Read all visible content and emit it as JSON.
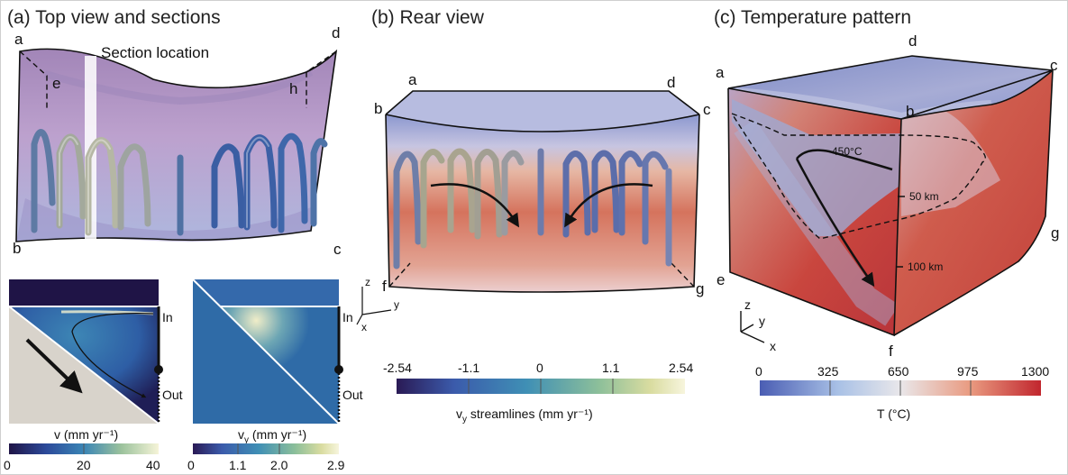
{
  "panel_a": {
    "title": "(a) Top view and sections",
    "section_label": "Section location",
    "corners": {
      "a": "a",
      "b": "b",
      "c": "c",
      "d": "d",
      "e": "e",
      "h": "h"
    },
    "in_label": "In",
    "out_label": "Out",
    "colorbar_v": {
      "label": "v (mm yr⁻¹)",
      "ticks": [
        "0",
        "20",
        "40"
      ]
    },
    "colorbar_vy": {
      "label": "v",
      "label_sub": "y",
      "label_rest": " (mm yr⁻¹)",
      "ticks": [
        "0",
        "1.1",
        "2.0",
        "2.9"
      ]
    }
  },
  "panel_b": {
    "title": "(b) Rear view",
    "corners": {
      "a": "a",
      "b": "b",
      "c": "c",
      "d": "d",
      "f": "f",
      "g": "g"
    },
    "axes": {
      "x": "x",
      "y": "y",
      "z": "z"
    },
    "colorbar": {
      "label": "v",
      "label_sub": "y",
      "label_rest": " streamlines (mm yr⁻¹)",
      "ticks": [
        "-2.54",
        "-1.1",
        "0",
        "1.1",
        "2.54"
      ],
      "colors": [
        "#2a1a55",
        "#3b5bab",
        "#3f8fb5",
        "#8cbf9a",
        "#d9dca0",
        "#f7f5dd"
      ]
    }
  },
  "panel_c": {
    "title": "(c) Temperature pattern",
    "corners": {
      "a": "a",
      "b": "b",
      "c": "c",
      "d": "d",
      "e": "e",
      "f": "f",
      "g": "g"
    },
    "axes": {
      "x": "x",
      "y": "y",
      "z": "z"
    },
    "isotherm_label": "450°C",
    "depth_labels": [
      "50 km",
      "100 km"
    ],
    "colorbar": {
      "label": "T (°C)",
      "ticks": [
        "0",
        "325",
        "650",
        "975",
        "1300"
      ],
      "colors": [
        "#4a5db3",
        "#a9c1e6",
        "#e9e7ea",
        "#e99a80",
        "#c1262e"
      ]
    }
  },
  "colors": {
    "velocity_map": [
      "#1f1446",
      "#2c4a9a",
      "#3a85b5",
      "#9bc29c",
      "#f6f4d8"
    ],
    "top_purple": "#b19cc8",
    "temp_red": "#c84a3c",
    "temp_blue": "#8797cf"
  }
}
